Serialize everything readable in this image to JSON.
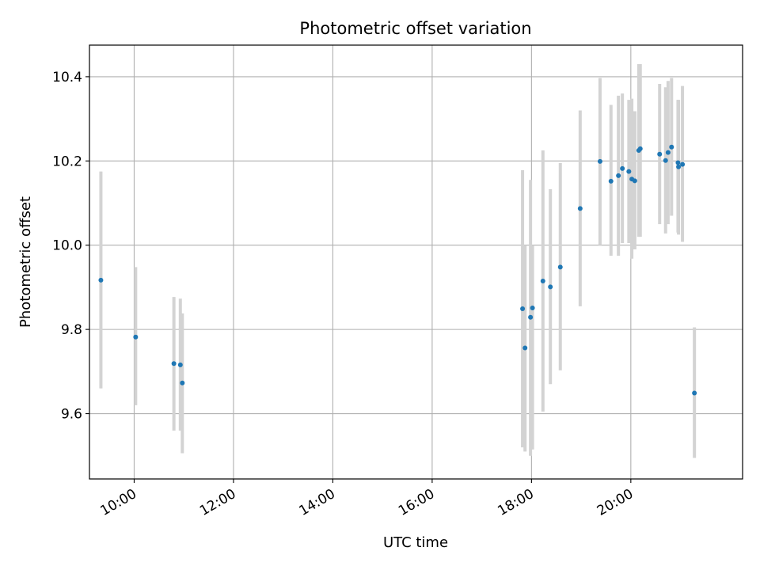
{
  "chart_data": {
    "type": "scatter",
    "title": "Photometric offset variation",
    "xlabel": "UTC time",
    "ylabel": "Photometric offset",
    "x_unit": "time of day (hours, UTC)",
    "xlim": [
      9.1,
      22.25
    ],
    "ylim": [
      9.445,
      10.475
    ],
    "xticks": [
      {
        "value": 10,
        "label": "10:00"
      },
      {
        "value": 12,
        "label": "12:00"
      },
      {
        "value": 14,
        "label": "14:00"
      },
      {
        "value": 16,
        "label": "16:00"
      },
      {
        "value": 18,
        "label": "18:00"
      },
      {
        "value": 20,
        "label": "20:00"
      }
    ],
    "yticks": [
      {
        "value": 9.6,
        "label": "9.6"
      },
      {
        "value": 9.8,
        "label": "9.8"
      },
      {
        "value": 10.0,
        "label": "10.0"
      },
      {
        "value": 10.2,
        "label": "10.2"
      },
      {
        "value": 10.4,
        "label": "10.4"
      }
    ],
    "grid": true,
    "xtick_rotation": 30,
    "series": [
      {
        "marker_color": "#1f77b4",
        "errorbar_color": "#d3d3d3",
        "points": [
          {
            "x": 9.33,
            "y": 9.917,
            "err_low": 9.66,
            "err_high": 10.175
          },
          {
            "x": 10.03,
            "y": 9.782,
            "err_low": 9.62,
            "err_high": 9.948
          },
          {
            "x": 10.8,
            "y": 9.719,
            "err_low": 9.56,
            "err_high": 9.877
          },
          {
            "x": 10.93,
            "y": 9.716,
            "err_low": 9.56,
            "err_high": 9.873
          },
          {
            "x": 10.97,
            "y": 9.673,
            "err_low": 9.506,
            "err_high": 9.838
          },
          {
            "x": 17.82,
            "y": 9.849,
            "err_low": 9.52,
            "err_high": 10.178
          },
          {
            "x": 17.87,
            "y": 9.756,
            "err_low": 9.51,
            "err_high": 10.0
          },
          {
            "x": 17.98,
            "y": 9.829,
            "err_low": 9.5,
            "err_high": 10.155
          },
          {
            "x": 18.02,
            "y": 9.851,
            "err_low": 9.515,
            "err_high": 10.0
          },
          {
            "x": 18.23,
            "y": 9.915,
            "err_low": 9.605,
            "err_high": 10.225
          },
          {
            "x": 18.38,
            "y": 9.901,
            "err_low": 9.67,
            "err_high": 10.133
          },
          {
            "x": 18.58,
            "y": 9.948,
            "err_low": 9.703,
            "err_high": 10.195
          },
          {
            "x": 18.98,
            "y": 10.087,
            "err_low": 9.855,
            "err_high": 10.32
          },
          {
            "x": 19.38,
            "y": 10.199,
            "err_low": 10.0,
            "err_high": 10.397
          },
          {
            "x": 19.6,
            "y": 10.152,
            "err_low": 9.975,
            "err_high": 10.333
          },
          {
            "x": 19.75,
            "y": 10.165,
            "err_low": 9.975,
            "err_high": 10.355
          },
          {
            "x": 19.83,
            "y": 10.182,
            "err_low": 10.005,
            "err_high": 10.36
          },
          {
            "x": 19.96,
            "y": 10.175,
            "err_low": 10.005,
            "err_high": 10.345
          },
          {
            "x": 20.02,
            "y": 10.157,
            "err_low": 9.968,
            "err_high": 10.348
          },
          {
            "x": 20.08,
            "y": 10.153,
            "err_low": 9.99,
            "err_high": 10.318
          },
          {
            "x": 20.16,
            "y": 10.225,
            "err_low": 10.02,
            "err_high": 10.43
          },
          {
            "x": 20.19,
            "y": 10.229,
            "err_low": 10.02,
            "err_high": 10.43
          },
          {
            "x": 20.58,
            "y": 10.216,
            "err_low": 10.05,
            "err_high": 10.383
          },
          {
            "x": 20.7,
            "y": 10.201,
            "err_low": 10.028,
            "err_high": 10.375
          },
          {
            "x": 20.75,
            "y": 10.22,
            "err_low": 10.05,
            "err_high": 10.39
          },
          {
            "x": 20.82,
            "y": 10.233,
            "err_low": 10.07,
            "err_high": 10.397
          },
          {
            "x": 20.95,
            "y": 10.196,
            "err_low": 10.03,
            "err_high": 10.345
          },
          {
            "x": 20.96,
            "y": 10.186,
            "err_low": 10.025,
            "err_high": 10.345
          },
          {
            "x": 21.04,
            "y": 10.192,
            "err_low": 10.008,
            "err_high": 10.378
          },
          {
            "x": 21.28,
            "y": 9.649,
            "err_low": 9.495,
            "err_high": 9.805
          }
        ]
      }
    ]
  }
}
